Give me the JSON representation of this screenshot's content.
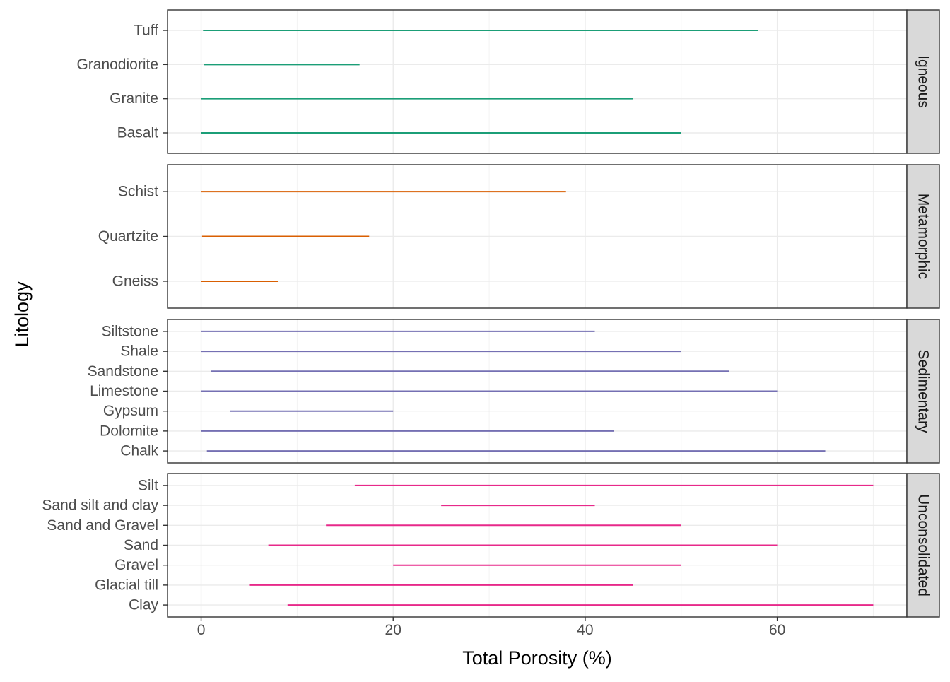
{
  "chart_data": {
    "type": "range",
    "title": "",
    "xlabel": "Total Porosity (%)",
    "ylabel": "Litology",
    "xlim": [
      -3.5,
      73.5
    ],
    "xticks": [
      0,
      20,
      40,
      60
    ],
    "grid": true,
    "facets": [
      {
        "label": "Igneous",
        "color": "#1B9E77",
        "items": [
          {
            "name": "Tuff",
            "min": 0.2,
            "max": 58
          },
          {
            "name": "Granodiorite",
            "min": 0.3,
            "max": 16.5
          },
          {
            "name": "Granite",
            "min": 0,
            "max": 45
          },
          {
            "name": "Basalt",
            "min": 0,
            "max": 50
          }
        ]
      },
      {
        "label": "Metamorphic",
        "color": "#D95F02",
        "items": [
          {
            "name": "Schist",
            "min": 0,
            "max": 38
          },
          {
            "name": "Quartzite",
            "min": 0.1,
            "max": 17.5
          },
          {
            "name": "Gneiss",
            "min": 0,
            "max": 8
          }
        ]
      },
      {
        "label": "Sedimentary",
        "color": "#7570B3",
        "items": [
          {
            "name": "Siltstone",
            "min": 0,
            "max": 41
          },
          {
            "name": "Shale",
            "min": 0,
            "max": 50
          },
          {
            "name": "Sandstone",
            "min": 1,
            "max": 55
          },
          {
            "name": "Limestone",
            "min": 0,
            "max": 60
          },
          {
            "name": "Gypsum",
            "min": 3,
            "max": 20
          },
          {
            "name": "Dolomite",
            "min": 0,
            "max": 43
          },
          {
            "name": "Chalk",
            "min": 0.6,
            "max": 65
          }
        ]
      },
      {
        "label": "Unconsolidated",
        "color": "#E7298A",
        "items": [
          {
            "name": "Silt",
            "min": 16,
            "max": 70
          },
          {
            "name": "Sand silt and clay",
            "min": 25,
            "max": 41
          },
          {
            "name": "Sand and Gravel",
            "min": 13,
            "max": 50
          },
          {
            "name": "Sand",
            "min": 7,
            "max": 60
          },
          {
            "name": "Gravel",
            "min": 20,
            "max": 50
          },
          {
            "name": "Glacial till",
            "min": 5,
            "max": 45
          },
          {
            "name": "Clay",
            "min": 9,
            "max": 70
          }
        ]
      }
    ]
  }
}
